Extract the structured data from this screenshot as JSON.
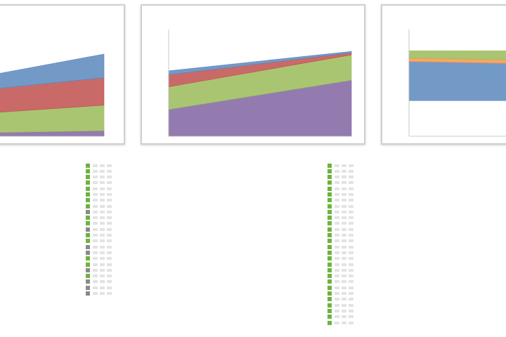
{
  "colors": {
    "series_blue": "#5b87bd",
    "series_red": "#c0504d",
    "series_green": "#9bbb59",
    "series_purple": "#8064a2",
    "series_orange": "#f79646",
    "status_green": "#6db33f",
    "status_gray": "#8a8a8a"
  },
  "chart_data": [
    {
      "type": "area",
      "stacked": true,
      "title": "",
      "subtitle": "",
      "x": [
        "",
        ""
      ],
      "series": [
        {
          "color": "#8064a2",
          "values": [
            4,
            6
          ]
        },
        {
          "color": "#9bbb59",
          "values": [
            22,
            28
          ]
        },
        {
          "color": "#c0504d",
          "values": [
            26,
            30
          ]
        },
        {
          "color": "#5b87bd",
          "values": [
            16,
            26
          ]
        }
      ],
      "ylim": [
        0,
        120
      ],
      "grid": false,
      "x_tick_labels": [
        "",
        ""
      ],
      "y_tick_labels": []
    },
    {
      "type": "area",
      "stacked": true,
      "title": "",
      "subtitle": "",
      "x": [
        "",
        ""
      ],
      "series": [
        {
          "color": "#8064a2",
          "values": [
            100,
            210
          ]
        },
        {
          "color": "#9bbb59",
          "values": [
            85,
            95
          ]
        },
        {
          "color": "#c0504d",
          "values": [
            45,
            8
          ]
        },
        {
          "color": "#5b87bd",
          "values": [
            15,
            5
          ]
        }
      ],
      "ylim": [
        0,
        400
      ],
      "grid": false,
      "x_tick_labels": [
        "",
        ""
      ],
      "y_tick_labels": [
        "",
        "",
        "",
        "",
        ""
      ]
    },
    {
      "type": "area",
      "stacked": true,
      "title": "",
      "subtitle": "",
      "x": [
        "",
        ""
      ],
      "series": [
        {
          "color": "#5b87bd",
          "values": [
            110,
            105
          ]
        },
        {
          "color": "#f79646",
          "values": [
            10,
            10
          ]
        },
        {
          "color": "#9bbb59",
          "values": [
            20,
            25
          ]
        }
      ],
      "ylim": [
        -100,
        200
      ],
      "grid": false,
      "data_labels": [
        ""
      ],
      "x_tick_labels": [
        ""
      ],
      "y_tick_labels": [
        "",
        "",
        "",
        ""
      ]
    }
  ],
  "legend_columns": [
    {
      "rows": [
        {
          "label": "",
          "status": "green",
          "bold": false
        },
        {
          "label": "",
          "status": "green",
          "bold": false
        },
        {
          "label": "",
          "status": "green",
          "bold": false
        },
        {
          "label": "",
          "status": "green",
          "bold": false
        },
        {
          "label": "",
          "status": "green",
          "bold": false
        },
        {
          "label": "",
          "status": "green",
          "bold": false
        },
        {
          "label": "",
          "status": "green",
          "bold": false
        },
        {
          "label": "",
          "status": "green",
          "bold": false
        },
        {
          "label": "",
          "status": "gray",
          "bold": false
        },
        {
          "label": "",
          "status": "green",
          "bold": false
        },
        {
          "label": "",
          "status": "green",
          "bold": false
        },
        {
          "label": "",
          "status": "gray",
          "bold": false
        },
        {
          "label": "",
          "status": "green",
          "bold": false
        },
        {
          "label": "",
          "status": "green",
          "bold": false
        },
        {
          "label": "",
          "status": "gray",
          "bold": false
        },
        {
          "label": "",
          "status": "gray",
          "bold": false
        },
        {
          "label": "",
          "status": "green",
          "bold": false
        },
        {
          "label": "",
          "status": "green",
          "bold": false
        },
        {
          "label": "",
          "status": "gray",
          "bold": false
        },
        {
          "label": "",
          "status": "green",
          "bold": false
        },
        {
          "label": "",
          "status": "gray",
          "bold": false
        },
        {
          "label": "",
          "status": "gray",
          "bold": false
        },
        {
          "label": "",
          "status": "gray",
          "bold": false
        }
      ]
    },
    {
      "rows": [
        {
          "label": "",
          "status": "green",
          "bold": true
        },
        {
          "label": "",
          "status": "green",
          "bold": false
        },
        {
          "label": "",
          "status": "green",
          "bold": false
        },
        {
          "label": "",
          "status": "green",
          "bold": true
        },
        {
          "label": "",
          "status": "green",
          "bold": false
        },
        {
          "label": "",
          "status": "green",
          "bold": false
        },
        {
          "label": "",
          "status": "green",
          "bold": false
        },
        {
          "label": "",
          "status": "green",
          "bold": true
        },
        {
          "label": "",
          "status": "green",
          "bold": false
        },
        {
          "label": "",
          "status": "green",
          "bold": false
        },
        {
          "label": "",
          "status": "green",
          "bold": false
        },
        {
          "label": "",
          "status": "green",
          "bold": true
        },
        {
          "label": "",
          "status": "green",
          "bold": false
        },
        {
          "label": "",
          "status": "green",
          "bold": false
        },
        {
          "label": "",
          "status": "green",
          "bold": true
        },
        {
          "label": "",
          "status": "green",
          "bold": false
        },
        {
          "label": "",
          "status": "green",
          "bold": false
        },
        {
          "label": "",
          "status": "green",
          "bold": false
        },
        {
          "label": "",
          "status": "green",
          "bold": false
        },
        {
          "label": "",
          "status": "green",
          "bold": true
        },
        {
          "label": "",
          "status": "green",
          "bold": false
        },
        {
          "label": "",
          "status": "green",
          "bold": false
        },
        {
          "label": "",
          "status": "green",
          "bold": false
        },
        {
          "label": "",
          "status": "green",
          "bold": false
        },
        {
          "label": "",
          "status": "green",
          "bold": false
        },
        {
          "label": "",
          "status": "green",
          "bold": false
        },
        {
          "label": "",
          "status": "green",
          "bold": false
        },
        {
          "label": "",
          "status": "green",
          "bold": false
        }
      ]
    }
  ],
  "notes": {
    "title": "",
    "text": ""
  }
}
